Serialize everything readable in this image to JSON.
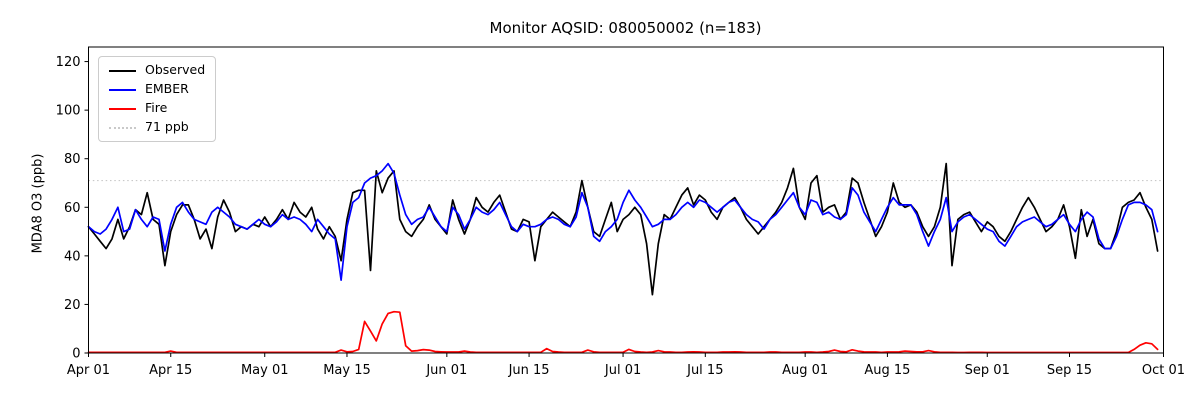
{
  "chart_data": {
    "type": "line",
    "title": "Monitor AQSID: 080050002 (n=183)",
    "xlabel": "",
    "ylabel": "MDA8 O3 (ppb)",
    "ylim": [
      0,
      126
    ],
    "y_ticks": [
      0,
      20,
      40,
      60,
      80,
      100,
      120
    ],
    "n_days": 183,
    "x_ticks": [
      {
        "day": 0,
        "label": "Apr 01"
      },
      {
        "day": 14,
        "label": "Apr 15"
      },
      {
        "day": 30,
        "label": "May 01"
      },
      {
        "day": 44,
        "label": "May 15"
      },
      {
        "day": 61,
        "label": "Jun 01"
      },
      {
        "day": 75,
        "label": "Jun 15"
      },
      {
        "day": 91,
        "label": "Jul 01"
      },
      {
        "day": 105,
        "label": "Jul 15"
      },
      {
        "day": 122,
        "label": "Aug 01"
      },
      {
        "day": 136,
        "label": "Aug 15"
      },
      {
        "day": 153,
        "label": "Sep 01"
      },
      {
        "day": 167,
        "label": "Sep 15"
      },
      {
        "day": 183,
        "label": "Oct 01"
      }
    ],
    "threshold": {
      "label": "71 ppb",
      "value": 71,
      "color": "#c9c9c9",
      "style": "dotted"
    },
    "legend_position": "upper-left",
    "grid": false,
    "series": [
      {
        "name": "Observed",
        "color": "#000000",
        "values": [
          52,
          49,
          46,
          43,
          47,
          55,
          47,
          52,
          59,
          57,
          66,
          55,
          53,
          36,
          50,
          57,
          61,
          61,
          55,
          47,
          51,
          43,
          56,
          63,
          58,
          50,
          52,
          51,
          53,
          52,
          56,
          52,
          55,
          59,
          55,
          62,
          58,
          56,
          60,
          51,
          47,
          52,
          48,
          38,
          55,
          66,
          67,
          67,
          34,
          75,
          66,
          72,
          75,
          55,
          50,
          48,
          52,
          55,
          61,
          55,
          52,
          49,
          63,
          55,
          49,
          55,
          64,
          60,
          58,
          62,
          65,
          58,
          51,
          50,
          55,
          54,
          38,
          52,
          55,
          58,
          56,
          54,
          52,
          58,
          71,
          60,
          50,
          48,
          55,
          62,
          50,
          55,
          57,
          60,
          57,
          45,
          24,
          45,
          57,
          55,
          60,
          65,
          68,
          61,
          65,
          63,
          58,
          55,
          60,
          62,
          64,
          60,
          55,
          52,
          49,
          52,
          55,
          58,
          62,
          68,
          76,
          60,
          55,
          70,
          73,
          58,
          60,
          61,
          55,
          58,
          72,
          70,
          62,
          55,
          48,
          52,
          58,
          70,
          62,
          60,
          61,
          58,
          52,
          48,
          52,
          60,
          78,
          36,
          55,
          57,
          58,
          54,
          50,
          54,
          52,
          48,
          46,
          50,
          55,
          60,
          64,
          60,
          55,
          50,
          52,
          55,
          61,
          52,
          39,
          59,
          48,
          55,
          45,
          43,
          43,
          50,
          60,
          62,
          63,
          66,
          60,
          55,
          42
        ]
      },
      {
        "name": "EMBER",
        "color": "#0000ff",
        "values": [
          52,
          50,
          49,
          51,
          55,
          60,
          50,
          51,
          59,
          55,
          52,
          56,
          55,
          42,
          53,
          60,
          62,
          58,
          55,
          54,
          53,
          58,
          60,
          58,
          56,
          53,
          52,
          51,
          53,
          55,
          53,
          52,
          54,
          57,
          55,
          56,
          55,
          53,
          50,
          55,
          52,
          49,
          47,
          30,
          52,
          62,
          64,
          70,
          72,
          73,
          75,
          78,
          74,
          65,
          57,
          53,
          55,
          56,
          60,
          56,
          52,
          50,
          60,
          57,
          51,
          55,
          60,
          58,
          57,
          59,
          62,
          57,
          52,
          50,
          53,
          52,
          52,
          53,
          55,
          56,
          55,
          53,
          52,
          56,
          66,
          60,
          48,
          46,
          50,
          52,
          55,
          62,
          67,
          63,
          60,
          56,
          52,
          53,
          55,
          55,
          57,
          60,
          62,
          60,
          63,
          62,
          60,
          58,
          60,
          62,
          63,
          60,
          57,
          55,
          54,
          51,
          55,
          57,
          60,
          63,
          66,
          60,
          57,
          63,
          62,
          57,
          58,
          56,
          55,
          57,
          68,
          65,
          58,
          54,
          50,
          55,
          60,
          64,
          61,
          61,
          61,
          57,
          50,
          44,
          50,
          55,
          64,
          50,
          54,
          56,
          57,
          55,
          53,
          51,
          50,
          46,
          44,
          48,
          52,
          54,
          55,
          56,
          54,
          52,
          53,
          55,
          57,
          53,
          50,
          55,
          58,
          56,
          47,
          43,
          43,
          48,
          55,
          61,
          62,
          62,
          61,
          59,
          50
        ]
      },
      {
        "name": "Fire",
        "color": "#ff0000",
        "values": [
          0.3,
          0.3,
          0.3,
          0.3,
          0.3,
          0.3,
          0.3,
          0.3,
          0.3,
          0.3,
          0.3,
          0.3,
          0.3,
          0.3,
          0.8,
          0.3,
          0.3,
          0.3,
          0.3,
          0.3,
          0.3,
          0.3,
          0.3,
          0.3,
          0.3,
          0.3,
          0.3,
          0.3,
          0.3,
          0.3,
          0.3,
          0.3,
          0.3,
          0.3,
          0.3,
          0.3,
          0.3,
          0.3,
          0.3,
          0.3,
          0.3,
          0.3,
          0.3,
          1.2,
          0.5,
          0.6,
          1.5,
          13,
          9,
          5,
          12,
          16.3,
          17,
          16.8,
          3,
          0.8,
          1,
          1.4,
          1.2,
          0.6,
          0.5,
          0.4,
          0.4,
          0.4,
          0.8,
          0.4,
          0.3,
          0.3,
          0.3,
          0.3,
          0.3,
          0.3,
          0.3,
          0.3,
          0.3,
          0.3,
          0.3,
          0.3,
          1.8,
          0.6,
          0.4,
          0.3,
          0.3,
          0.3,
          0.3,
          1.2,
          0.5,
          0.3,
          0.3,
          0.3,
          0.3,
          0.3,
          1.5,
          0.6,
          0.4,
          0.3,
          0.4,
          1.0,
          0.5,
          0.4,
          0.3,
          0.3,
          0.4,
          0.5,
          0.4,
          0.3,
          0.3,
          0.3,
          0.4,
          0.4,
          0.5,
          0.4,
          0.3,
          0.3,
          0.3,
          0.3,
          0.4,
          0.4,
          0.3,
          0.3,
          0.3,
          0.3,
          0.4,
          0.4,
          0.3,
          0.4,
          0.6,
          1.2,
          0.6,
          0.5,
          1.3,
          0.8,
          0.5,
          0.4,
          0.4,
          0.3,
          0.4,
          0.4,
          0.5,
          0.8,
          0.6,
          0.5,
          0.5,
          1.0,
          0.5,
          0.3,
          0.3,
          0.3,
          0.2,
          0.2,
          0.3,
          0.3,
          0.3,
          0.2,
          0.2,
          0.2,
          0.2,
          0.2,
          0.2,
          0.2,
          0.2,
          0.2,
          0.2,
          0.2,
          0.2,
          0.2,
          0.2,
          0.2,
          0.2,
          0.2,
          0.2,
          0.2,
          0.2,
          0.2,
          0.2,
          0.2,
          0.2,
          0.2,
          1.5,
          3.2,
          4.2,
          3.8,
          1.5
        ]
      }
    ]
  }
}
